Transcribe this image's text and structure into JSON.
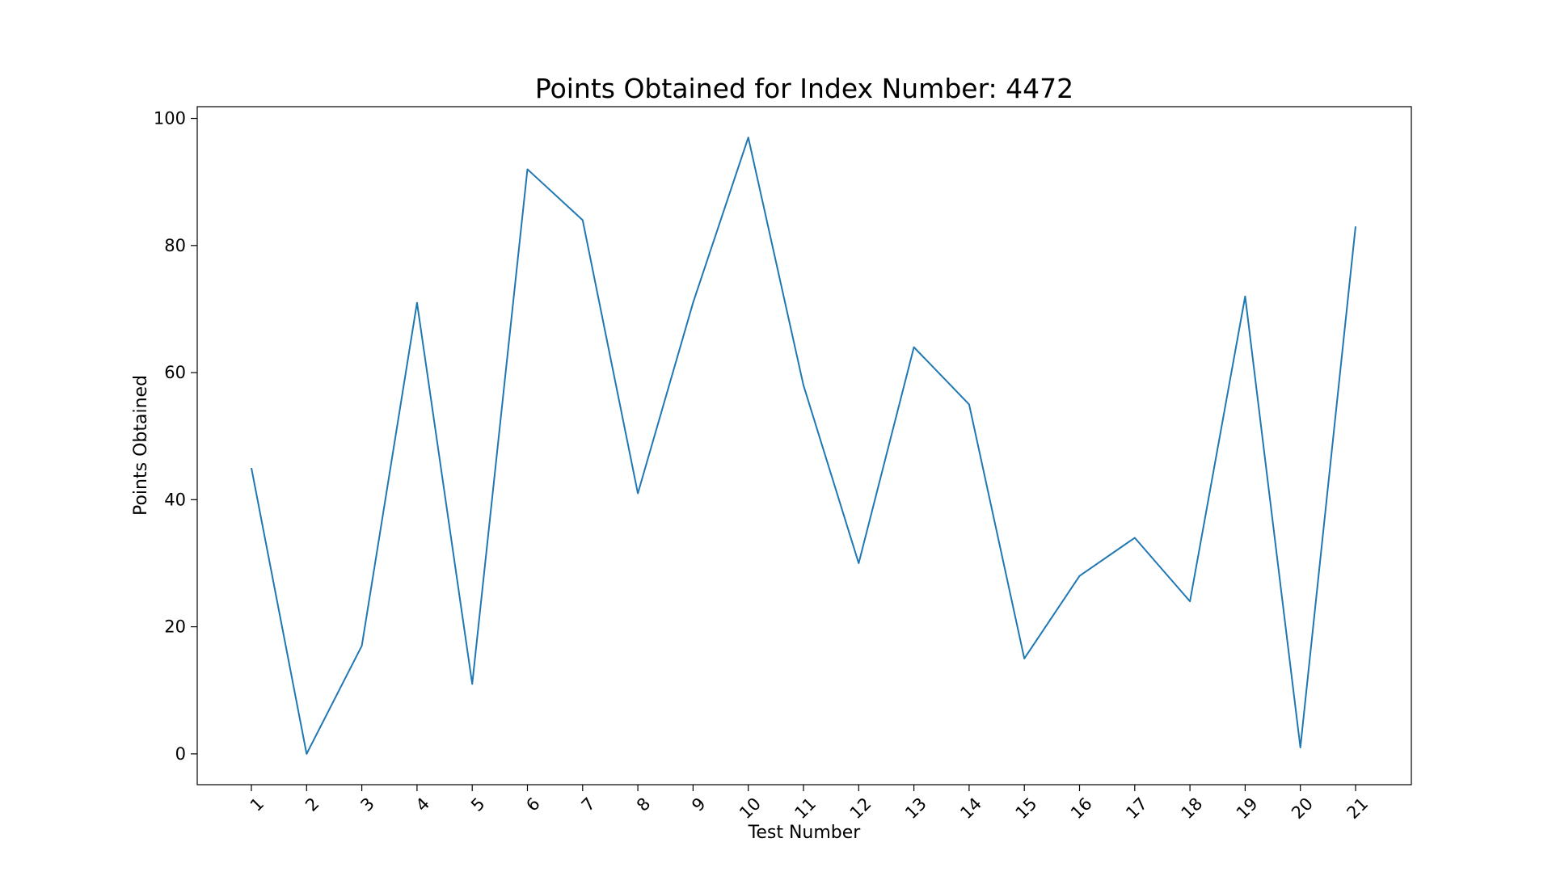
{
  "chart_data": {
    "type": "line",
    "title": "Points Obtained for Index Number: 4472",
    "xlabel": "Test Number",
    "ylabel": "Points Obtained",
    "x": [
      1,
      2,
      3,
      4,
      5,
      6,
      7,
      8,
      9,
      10,
      11,
      12,
      13,
      14,
      15,
      16,
      17,
      18,
      19,
      20,
      21
    ],
    "x_tick_labels": [
      "1",
      "2",
      "3",
      "4",
      "5",
      "6",
      "7",
      "8",
      "9",
      "10",
      "11",
      "12",
      "13",
      "14",
      "15",
      "16",
      "17",
      "18",
      "19",
      "20",
      "21"
    ],
    "series": [
      {
        "values": [
          45,
          0,
          17,
          71,
          11,
          92,
          84,
          41,
          71,
          97,
          58,
          30,
          64,
          55,
          15,
          28,
          34,
          24,
          72,
          1,
          83
        ]
      }
    ],
    "ylim": [
      -4.85,
      101.85
    ],
    "y_ticks": [
      0,
      20,
      40,
      60,
      80,
      100
    ],
    "grid": false,
    "legend": "none",
    "x_tick_rotation": 45,
    "line_color": "#1f77b4",
    "axes_color": "#000000"
  }
}
